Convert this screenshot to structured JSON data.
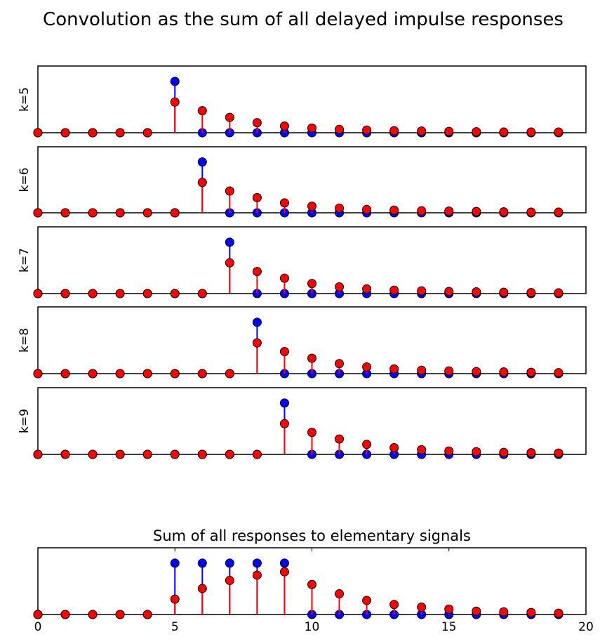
{
  "title": "Convolution as the sum of all delayed impulse responses",
  "colors": {
    "input": "#0000ff",
    "response": "#ff0000",
    "frame": "#000000",
    "marker_edge": "#000000"
  },
  "chart_data": [
    {
      "type": "stem",
      "ylabel": "k=5",
      "x": [
        0,
        1,
        2,
        3,
        4,
        5,
        6,
        7,
        8,
        9,
        10,
        11,
        12,
        13,
        14,
        15,
        16,
        17,
        18,
        19
      ],
      "xlim": [
        0,
        20
      ],
      "ylim": [
        0,
        1.0
      ],
      "x_ticks_visible": false,
      "series": [
        {
          "values": [
            0,
            0,
            0,
            0,
            0,
            0.77,
            0,
            0,
            0,
            0,
            0,
            0,
            0,
            0,
            0,
            0,
            0,
            0,
            0,
            0
          ]
        },
        {
          "values": [
            0,
            0,
            0,
            0,
            0,
            0.46,
            0.33,
            0.23,
            0.15,
            0.1,
            0.07,
            0.05,
            0.04,
            0.03,
            0.025,
            0.02,
            0.015,
            0.01,
            0.01,
            0.01
          ]
        }
      ]
    },
    {
      "type": "stem",
      "ylabel": "k=6",
      "x": [
        0,
        1,
        2,
        3,
        4,
        5,
        6,
        7,
        8,
        9,
        10,
        11,
        12,
        13,
        14,
        15,
        16,
        17,
        18,
        19
      ],
      "xlim": [
        0,
        20
      ],
      "ylim": [
        0,
        1.0
      ],
      "x_ticks_visible": false,
      "series": [
        {
          "values": [
            0,
            0,
            0,
            0,
            0,
            0,
            0.77,
            0,
            0,
            0,
            0,
            0,
            0,
            0,
            0,
            0,
            0,
            0,
            0,
            0
          ]
        },
        {
          "values": [
            0,
            0,
            0,
            0,
            0,
            0,
            0.46,
            0.33,
            0.23,
            0.15,
            0.1,
            0.07,
            0.05,
            0.04,
            0.03,
            0.025,
            0.02,
            0.015,
            0.01,
            0.01
          ]
        }
      ]
    },
    {
      "type": "stem",
      "ylabel": "k=7",
      "x": [
        0,
        1,
        2,
        3,
        4,
        5,
        6,
        7,
        8,
        9,
        10,
        11,
        12,
        13,
        14,
        15,
        16,
        17,
        18,
        19
      ],
      "xlim": [
        0,
        20
      ],
      "ylim": [
        0,
        1.0
      ],
      "x_ticks_visible": false,
      "series": [
        {
          "values": [
            0,
            0,
            0,
            0,
            0,
            0,
            0,
            0.77,
            0,
            0,
            0,
            0,
            0,
            0,
            0,
            0,
            0,
            0,
            0,
            0
          ]
        },
        {
          "values": [
            0,
            0,
            0,
            0,
            0,
            0,
            0,
            0.46,
            0.33,
            0.23,
            0.15,
            0.1,
            0.07,
            0.05,
            0.04,
            0.03,
            0.025,
            0.02,
            0.015,
            0.01
          ]
        }
      ]
    },
    {
      "type": "stem",
      "ylabel": "k=8",
      "x": [
        0,
        1,
        2,
        3,
        4,
        5,
        6,
        7,
        8,
        9,
        10,
        11,
        12,
        13,
        14,
        15,
        16,
        17,
        18,
        19
      ],
      "xlim": [
        0,
        20
      ],
      "ylim": [
        0,
        1.0
      ],
      "x_ticks_visible": false,
      "series": [
        {
          "values": [
            0,
            0,
            0,
            0,
            0,
            0,
            0,
            0,
            0.77,
            0,
            0,
            0,
            0,
            0,
            0,
            0,
            0,
            0,
            0,
            0
          ]
        },
        {
          "values": [
            0,
            0,
            0,
            0,
            0,
            0,
            0,
            0,
            0.46,
            0.33,
            0.23,
            0.15,
            0.1,
            0.07,
            0.05,
            0.04,
            0.03,
            0.025,
            0.02,
            0.015
          ]
        }
      ]
    },
    {
      "type": "stem",
      "ylabel": "k=9",
      "x": [
        0,
        1,
        2,
        3,
        4,
        5,
        6,
        7,
        8,
        9,
        10,
        11,
        12,
        13,
        14,
        15,
        16,
        17,
        18,
        19
      ],
      "xlim": [
        0,
        20
      ],
      "ylim": [
        0,
        1.0
      ],
      "x_ticks_visible": false,
      "series": [
        {
          "values": [
            0,
            0,
            0,
            0,
            0,
            0,
            0,
            0,
            0,
            0.77,
            0,
            0,
            0,
            0,
            0,
            0,
            0,
            0,
            0,
            0
          ]
        },
        {
          "values": [
            0,
            0,
            0,
            0,
            0,
            0,
            0,
            0,
            0,
            0.46,
            0.33,
            0.23,
            0.15,
            0.1,
            0.07,
            0.05,
            0.04,
            0.03,
            0.025,
            0.02
          ]
        }
      ]
    },
    {
      "type": "stem",
      "title": "Sum of all responses to elementary signals",
      "x": [
        0,
        1,
        2,
        3,
        4,
        5,
        6,
        7,
        8,
        9,
        10,
        11,
        12,
        13,
        14,
        15,
        16,
        17,
        18,
        19
      ],
      "xlim": [
        0,
        20
      ],
      "ylim": [
        0,
        1.0
      ],
      "x_ticks": [
        0,
        5,
        10,
        15,
        20
      ],
      "x_tick_labels": [
        "0",
        "5",
        "10",
        "15",
        "20"
      ],
      "series": [
        {
          "values": [
            0,
            0,
            0,
            0,
            0,
            0.77,
            0.77,
            0.77,
            0.77,
            0.77,
            0,
            0,
            0,
            0,
            0,
            0,
            0,
            0,
            0,
            0
          ]
        },
        {
          "values": [
            0,
            0,
            0,
            0,
            0,
            0.23,
            0.39,
            0.51,
            0.59,
            0.64,
            0.45,
            0.31,
            0.21,
            0.15,
            0.11,
            0.08,
            0.05,
            0.04,
            0.03,
            0.02
          ]
        }
      ]
    }
  ]
}
